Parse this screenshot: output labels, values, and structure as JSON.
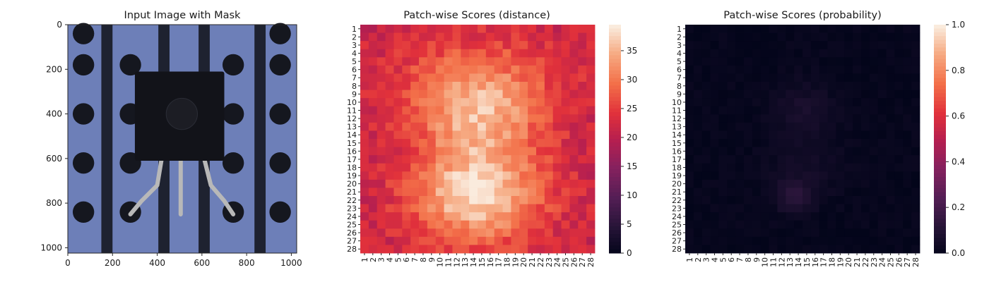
{
  "chart_data": [
    {
      "type": "image",
      "title": "Input Image with Mask",
      "xlim": [
        0,
        1024
      ],
      "ylim": [
        1024,
        0
      ],
      "x_ticks": [
        0,
        200,
        400,
        600,
        800,
        1000
      ],
      "y_ticks": [
        0,
        200,
        400,
        600,
        800,
        1000
      ],
      "image_content": {
        "background": "#6d7fb8",
        "dark_stripe_color": "#1e2230",
        "hole_color": "#15171f",
        "body_color": "#121319",
        "stripes_x": [
          [
            150,
            200
          ],
          [
            405,
            455
          ],
          [
            585,
            635
          ],
          [
            835,
            885
          ]
        ],
        "holes": [
          [
            70,
            180
          ],
          [
            280,
            180
          ],
          [
            740,
            180
          ],
          [
            950,
            180
          ],
          [
            70,
            400
          ],
          [
            280,
            400
          ],
          [
            740,
            400
          ],
          [
            950,
            400
          ],
          [
            70,
            620
          ],
          [
            280,
            620
          ],
          [
            740,
            620
          ],
          [
            950,
            620
          ],
          [
            70,
            840
          ],
          [
            280,
            840
          ],
          [
            740,
            840
          ],
          [
            950,
            840
          ],
          [
            950,
            40
          ],
          [
            70,
            40
          ]
        ],
        "component_body": [
          300,
          210,
          700,
          610
        ],
        "component_hole": [
          510,
          400,
          70
        ],
        "lead_color": "#b8b8b8"
      }
    },
    {
      "type": "heatmap",
      "title": "Patch-wise Scores (distance)",
      "rows": 28,
      "cols": 28,
      "x_ticklabels": [
        "1",
        "2",
        "3",
        "4",
        "5",
        "6",
        "7",
        "8",
        "9",
        "10",
        "11",
        "12",
        "13",
        "14",
        "15",
        "16",
        "17",
        "18",
        "19",
        "20",
        "21",
        "22",
        "23",
        "24",
        "25",
        "26",
        "27",
        "28"
      ],
      "y_ticklabels": [
        "1",
        "2",
        "3",
        "4",
        "5",
        "6",
        "7",
        "8",
        "9",
        "10",
        "11",
        "12",
        "13",
        "14",
        "15",
        "16",
        "17",
        "18",
        "19",
        "20",
        "21",
        "22",
        "23",
        "24",
        "25",
        "26",
        "27",
        "28"
      ],
      "vmin": 0,
      "vmax": 39.5,
      "colorbar_ticks": [
        0,
        5,
        10,
        15,
        20,
        25,
        30,
        35
      ],
      "colormap": "rocket",
      "value_model": {
        "base": 21.5,
        "hotspots": [
          {
            "cx": 14.5,
            "cy": 21.5,
            "sx": 5.5,
            "sy": 4.2,
            "amp": 16.5
          },
          {
            "cx": 14.5,
            "cy": 11.5,
            "sx": 5.0,
            "sy": 4.5,
            "amp": 11.0
          },
          {
            "cx": 14.5,
            "cy": 7.5,
            "sx": 8.0,
            "sy": 4.0,
            "amp": 5.0
          }
        ]
      }
    },
    {
      "type": "heatmap",
      "title": "Patch-wise Scores (probability)",
      "rows": 28,
      "cols": 28,
      "x_ticklabels": [
        "1",
        "2",
        "3",
        "4",
        "5",
        "6",
        "7",
        "8",
        "9",
        "10",
        "11",
        "12",
        "13",
        "14",
        "15",
        "16",
        "17",
        "18",
        "19",
        "20",
        "21",
        "22",
        "23",
        "24",
        "25",
        "26",
        "27",
        "28"
      ],
      "y_ticklabels": [
        "1",
        "2",
        "3",
        "4",
        "5",
        "6",
        "7",
        "8",
        "9",
        "10",
        "11",
        "12",
        "13",
        "14",
        "15",
        "16",
        "17",
        "18",
        "19",
        "20",
        "21",
        "22",
        "23",
        "24",
        "25",
        "26",
        "27",
        "28"
      ],
      "vmin": 0.0,
      "vmax": 1.0,
      "colorbar_ticks": [
        "0.0",
        "0.2",
        "0.4",
        "0.6",
        "0.8",
        "1.0"
      ],
      "colormap": "rocket",
      "value_model": {
        "base": 0.012,
        "hotspots": [
          {
            "cx": 13.5,
            "cy": 21.5,
            "sx": 1.6,
            "sy": 1.4,
            "amp": 0.11
          },
          {
            "cx": 14.5,
            "cy": 11.0,
            "sx": 2.5,
            "sy": 2.5,
            "amp": 0.06
          },
          {
            "cx": 15.0,
            "cy": 18.0,
            "sx": 3.0,
            "sy": 2.5,
            "amp": 0.04
          }
        ]
      }
    }
  ]
}
